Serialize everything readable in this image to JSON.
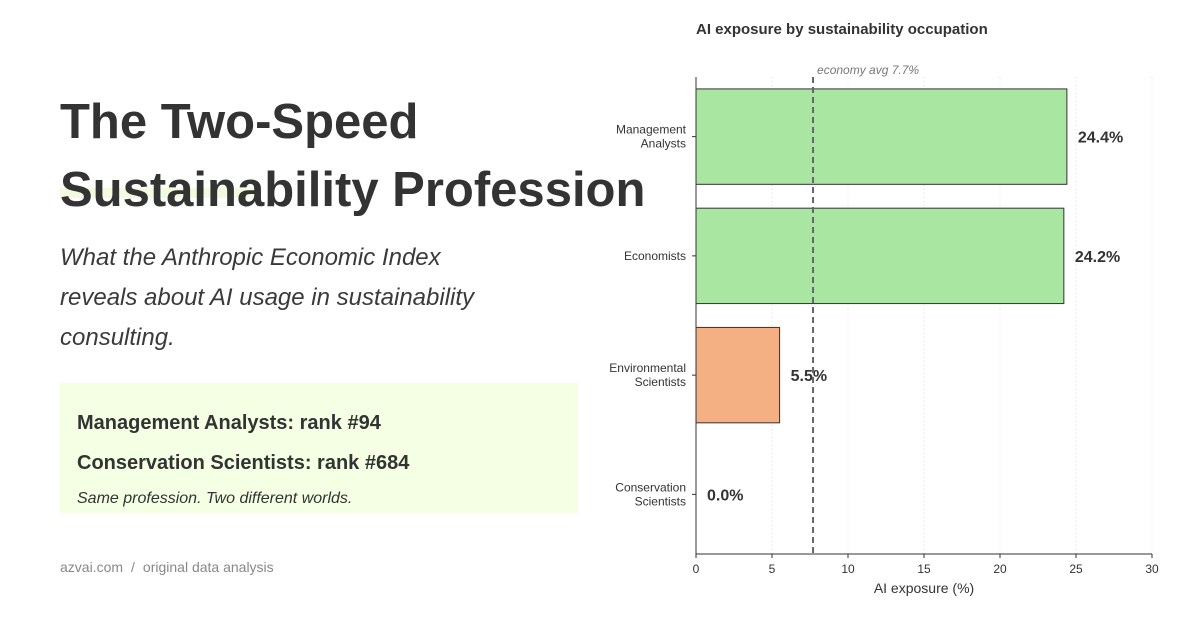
{
  "headline": [
    "The Two-Speed",
    "Sustainability Profession"
  ],
  "subtitle": "What the Anthropic Economic Index reveals about AI usage in sustainability consulting.",
  "callout": {
    "line1": "Management Analysts: rank #94",
    "line2": "Conservation Scientists: rank #684",
    "tagline": "Same profession. Two different worlds."
  },
  "footer": {
    "site": "azvai.com",
    "separator": "/",
    "note": "original data analysis"
  },
  "colors": {
    "high_exposure": "#a8e6a2",
    "low_exposure": "#f4b082",
    "reference_line": "#666666",
    "callout_bg": "#f5ffe3"
  },
  "chart_data": {
    "type": "bar",
    "orientation": "horizontal",
    "title": "AI exposure by sustainability occupation",
    "xlabel": "AI exposure (%)",
    "ylabel": "",
    "categories": [
      "Management\nAnalysts",
      "Economists",
      "Environmental\nScientists",
      "Conservation\nScientists"
    ],
    "values": [
      24.4,
      24.2,
      5.5,
      0.0
    ],
    "value_labels": [
      "24.4%",
      "24.2%",
      "5.5%",
      "0.0%"
    ],
    "bar_colors": [
      "#a8e6a2",
      "#a8e6a2",
      "#f4b082",
      "#f4b082"
    ],
    "xlim": [
      0,
      30
    ],
    "xticks": [
      0,
      5,
      10,
      15,
      20,
      25,
      30
    ],
    "reference_line": {
      "value": 7.7,
      "label": "economy avg 7.7%"
    },
    "grid": "vertical dotted"
  }
}
